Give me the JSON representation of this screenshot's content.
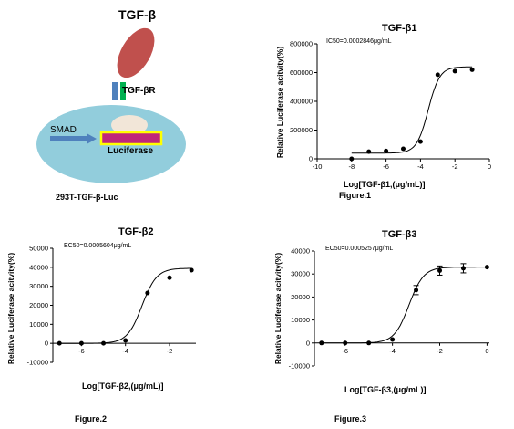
{
  "schematic": {
    "title": "TGF-β",
    "receptor_label": "TGF-βR",
    "smad_label": "SMAD",
    "reporter_label": "Luciferase",
    "cell_line": "293T-TGF-β-Luc",
    "colors": {
      "ligand": "#c0504d",
      "receptor_a": "#4f81bd",
      "receptor_b": "#00b050",
      "cell": "#92cddc",
      "nucleus": "#f2e6d8",
      "reporter_fill": "#c0267a",
      "reporter_border": "#ffff00",
      "arrow": "#4f81bd"
    }
  },
  "chart_data": [
    {
      "type": "scatter",
      "title": "TGF-β1",
      "annotation": "IC50=0.0002846μg/mL",
      "xlabel": "Log[TGF-β1,(μg/mL)]",
      "ylabel": "Relative Luciferase acitvity(%)",
      "figure_label": "Figure.1",
      "xlim": [
        -10,
        0
      ],
      "ylim": [
        0,
        800000
      ],
      "xticks": [
        -10,
        -8,
        -6,
        -4,
        -2,
        0
      ],
      "yticks": [
        0,
        200000,
        400000,
        600000,
        800000
      ],
      "points": [
        {
          "x": -8,
          "y": 0
        },
        {
          "x": -7,
          "y": 50000
        },
        {
          "x": -6,
          "y": 55000
        },
        {
          "x": -5,
          "y": 70000
        },
        {
          "x": -4,
          "y": 120000
        },
        {
          "x": -3,
          "y": 585000
        },
        {
          "x": -2,
          "y": 610000
        },
        {
          "x": -1,
          "y": 620000
        }
      ],
      "fit": {
        "bottom": 40000,
        "top": 640000,
        "logec50": -3.55,
        "hill": 1.3
      }
    },
    {
      "type": "scatter",
      "title": "TGF-β2",
      "annotation": "EC50=0.0005604μg/mL",
      "xlabel": "Log[TGF-β2,(μg/mL)]",
      "ylabel": "Relative Luciferase acitvity(%)",
      "figure_label": "Figure.2",
      "xlim": [
        -7.3,
        -0.8
      ],
      "ylim": [
        -10000,
        50000
      ],
      "xticks": [
        -6,
        -4,
        -2
      ],
      "yticks": [
        -10000,
        0,
        10000,
        20000,
        30000,
        40000,
        50000
      ],
      "points": [
        {
          "x": -7,
          "y": 0
        },
        {
          "x": -6,
          "y": 0
        },
        {
          "x": -5,
          "y": 0
        },
        {
          "x": -4,
          "y": 1500
        },
        {
          "x": -3,
          "y": 26500
        },
        {
          "x": -2,
          "y": 34500
        },
        {
          "x": -1,
          "y": 38500
        }
      ],
      "fit": {
        "bottom": 0,
        "top": 39500,
        "logec50": -3.25,
        "hill": 1.3
      }
    },
    {
      "type": "scatter",
      "title": "TGF-β3",
      "annotation": "EC50=0.0005257μg/mL",
      "xlabel": "Log[TGF-β3,(μg/mL)]",
      "ylabel": "Relative Luciferase acitvity(%)",
      "figure_label": "Figure.3",
      "xlim": [
        -7.3,
        0.1
      ],
      "ylim": [
        -10000,
        40000
      ],
      "xticks": [
        -6,
        -4,
        -2,
        0
      ],
      "yticks": [
        -10000,
        0,
        10000,
        20000,
        30000,
        40000
      ],
      "points": [
        {
          "x": -7,
          "y": 0,
          "err": 0
        },
        {
          "x": -6,
          "y": 0,
          "err": 0
        },
        {
          "x": -5,
          "y": 0,
          "err": 0
        },
        {
          "x": -4,
          "y": 1500,
          "err": 0
        },
        {
          "x": -3,
          "y": 23000,
          "err": 2000
        },
        {
          "x": -2,
          "y": 31500,
          "err": 2000
        },
        {
          "x": -1,
          "y": 32500,
          "err": 2000
        },
        {
          "x": 0,
          "y": 33000,
          "err": 0
        }
      ],
      "fit": {
        "bottom": 0,
        "top": 33000,
        "logec50": -3.3,
        "hill": 1.4
      }
    }
  ]
}
